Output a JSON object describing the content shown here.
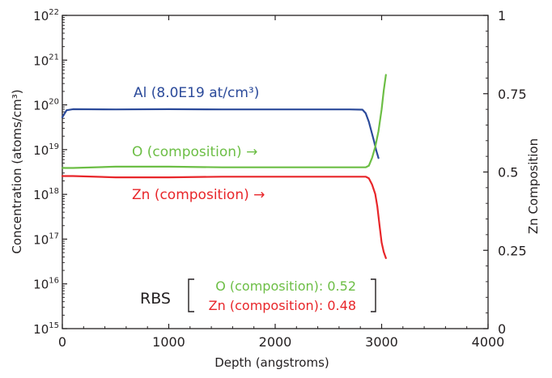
{
  "chart_data": {
    "type": "line",
    "xlabel": "Depth (angstroms)",
    "ylabel": "Concentration (atoms/cm³)",
    "y2label": "Zn Composition",
    "xlim": [
      0,
      4000
    ],
    "ylim_log10": [
      15,
      22
    ],
    "y2lim": [
      0,
      1
    ],
    "y_scale": "log",
    "x_ticks": [
      {
        "value": 0,
        "label": "0"
      },
      {
        "value": 1000,
        "label": "1000"
      },
      {
        "value": 2000,
        "label": "2000"
      },
      {
        "value": 3000,
        "label": "3000"
      },
      {
        "value": 4000,
        "label": "4000"
      }
    ],
    "y_ticks": [
      {
        "exp": 15,
        "base": "10",
        "sup": "15"
      },
      {
        "exp": 16,
        "base": "10",
        "sup": "16"
      },
      {
        "exp": 17,
        "base": "10",
        "sup": "17"
      },
      {
        "exp": 18,
        "base": "10",
        "sup": "18"
      },
      {
        "exp": 19,
        "base": "10",
        "sup": "19"
      },
      {
        "exp": 20,
        "base": "10",
        "sup": "20"
      },
      {
        "exp": 21,
        "base": "10",
        "sup": "21"
      },
      {
        "exp": 22,
        "base": "10",
        "sup": "22"
      }
    ],
    "y2_ticks": [
      {
        "value": 0,
        "label": "0"
      },
      {
        "value": 0.25,
        "label": "0.25"
      },
      {
        "value": 0.5,
        "label": "0.5"
      },
      {
        "value": 0.75,
        "label": "0.75"
      },
      {
        "value": 1,
        "label": "1"
      }
    ],
    "grid": false,
    "series": [
      {
        "name": "Al (8.0E19 at/cm³)",
        "axis": "left",
        "color": "#2b4a9a",
        "x": [
          0,
          40,
          100,
          500,
          1000,
          1500,
          2000,
          2500,
          2700,
          2820,
          2850,
          2880,
          2900,
          2930,
          2950,
          2970
        ],
        "y": [
          5.3e+19,
          7.6e+19,
          8e+19,
          7.9e+19,
          8e+19,
          7.9e+19,
          7.9e+19,
          7.9e+19,
          7.9e+19,
          7.8e+19,
          6.5e+19,
          4.2e+19,
          2.8e+19,
          1.5e+19,
          9.5e+18,
          6.5e+18
        ]
      },
      {
        "name": "O (composition)",
        "axis": "right",
        "color": "#6cbe45",
        "x": [
          0,
          100,
          500,
          1000,
          1500,
          2000,
          2500,
          2800,
          2850,
          2880,
          2910,
          2940,
          2970,
          3000,
          3020,
          3040
        ],
        "y": [
          0.513,
          0.513,
          0.517,
          0.517,
          0.515,
          0.515,
          0.515,
          0.515,
          0.515,
          0.52,
          0.545,
          0.58,
          0.63,
          0.7,
          0.76,
          0.81
        ]
      },
      {
        "name": "Zn (composition)",
        "axis": "right",
        "color": "#e8262a",
        "x": [
          0,
          100,
          500,
          1000,
          1500,
          2000,
          2500,
          2800,
          2850,
          2880,
          2910,
          2940,
          2960,
          2980,
          3000,
          3020,
          3040
        ],
        "y": [
          0.487,
          0.487,
          0.483,
          0.483,
          0.485,
          0.485,
          0.485,
          0.485,
          0.485,
          0.48,
          0.46,
          0.43,
          0.39,
          0.33,
          0.275,
          0.245,
          0.225
        ]
      }
    ],
    "annotations": {
      "al_label": "Al (8.0E19 at/cm³)",
      "o_label": "O (composition) →",
      "zn_label": "Zn (composition) →",
      "rbs_label": "RBS",
      "rbs_o": "O (composition): 0.52",
      "rbs_zn": "Zn (composition): 0.48"
    },
    "colors": {
      "axis": "#231f20",
      "al": "#2b4a9a",
      "o": "#6cbe45",
      "zn": "#e8262a"
    }
  }
}
